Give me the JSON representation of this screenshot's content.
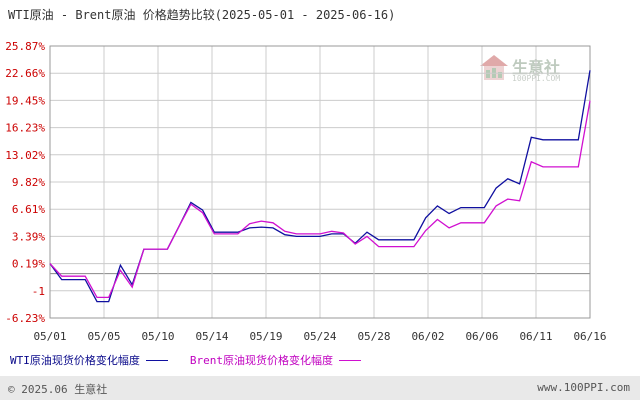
{
  "title": "WTI原油 - Brent原油 价格趋势比较(2025-05-01 - 2025-06-16)",
  "watermark": {
    "name": "生意社",
    "url": "100PPI.COM"
  },
  "legend": {
    "wti_label": "WTI原油现货价格变化幅度",
    "brent_label": "Brent原油现货价格变化幅度"
  },
  "footer": {
    "copyright": "© 2025.06 生意社",
    "site": "www.100PPI.com"
  },
  "colors": {
    "wti": "#1010a0",
    "brent": "#d010d0",
    "ticks": "#cc0000",
    "grid": "#cccccc"
  },
  "chart_data": {
    "type": "line",
    "x_labels": [
      "05/01",
      "05/05",
      "05/10",
      "05/14",
      "05/19",
      "05/24",
      "05/28",
      "06/02",
      "06/06",
      "06/11",
      "06/16"
    ],
    "y_ticks": [
      "25.87%",
      "22.66%",
      "19.45%",
      "16.23%",
      "13.02%",
      "9.82%",
      "6.61%",
      "3.39%",
      "0.19%",
      "-1",
      "-6.23%"
    ],
    "ylim": [
      -6.23,
      25.87
    ],
    "zero_line": -1,
    "grid": true,
    "legend_position": "bottom",
    "series": [
      {
        "name": "WTI原油现货价格变化幅度",
        "values": [
          0.19,
          -1.7,
          -1.7,
          -1.7,
          -4.3,
          -4.3,
          0,
          -2.3,
          1.9,
          1.9,
          1.9,
          4.6,
          7.4,
          6.5,
          3.9,
          3.9,
          3.9,
          4.4,
          4.5,
          4.4,
          3.6,
          3.4,
          3.4,
          3.4,
          3.7,
          3.7,
          2.6,
          3.9,
          3,
          3,
          3,
          3,
          5.6,
          7,
          6.1,
          6.8,
          6.8,
          6.8,
          9.1,
          10.2,
          9.6,
          15.1,
          14.8,
          14.8,
          14.8,
          14.8,
          23
        ]
      },
      {
        "name": "Brent原油现货价格变化幅度",
        "values": [
          0.19,
          -1.3,
          -1.3,
          -1.3,
          -3.8,
          -3.8,
          -0.6,
          -2.6,
          1.9,
          1.9,
          1.9,
          4.6,
          7.2,
          6.2,
          3.7,
          3.7,
          3.7,
          4.9,
          5.2,
          5,
          4,
          3.7,
          3.7,
          3.7,
          4,
          3.8,
          2.5,
          3.4,
          2.2,
          2.2,
          2.2,
          2.2,
          4.1,
          5.4,
          4.4,
          5,
          5,
          5,
          7,
          7.8,
          7.6,
          12.2,
          11.6,
          11.6,
          11.6,
          11.6,
          19.4
        ]
      }
    ]
  }
}
